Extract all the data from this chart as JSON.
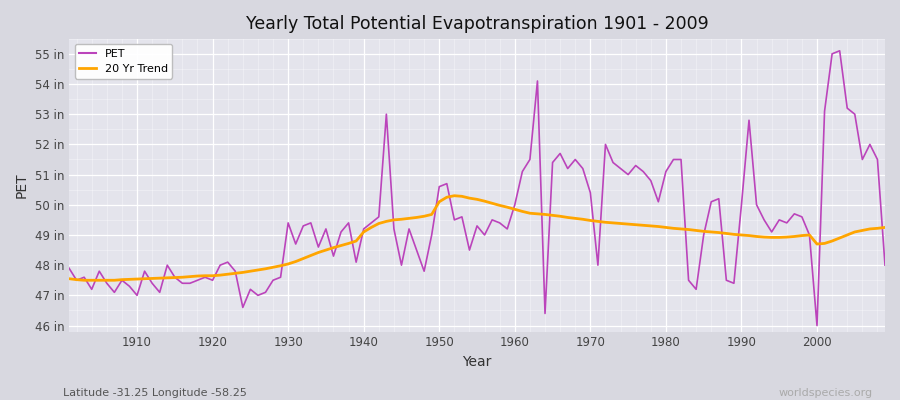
{
  "title": "Yearly Total Potential Evapotranspiration 1901 - 2009",
  "xlabel": "Year",
  "ylabel": "PET",
  "subtitle": "Latitude -31.25 Longitude -58.25",
  "watermark": "worldspecies.org",
  "pet_color": "#BB44BB",
  "trend_color": "#FFA500",
  "fig_bg": "#D8D8E0",
  "plot_bg": "#E4E4EC",
  "ylim_low": 45.8,
  "ylim_high": 55.5,
  "xlim_low": 1901,
  "xlim_high": 2009,
  "yticks": [
    46,
    47,
    48,
    49,
    50,
    51,
    52,
    53,
    54,
    55
  ],
  "ytick_labels": [
    "46 in",
    "47 in",
    "48 in",
    "49 in",
    "50 in",
    "51 in",
    "52 in",
    "53 in",
    "54 in",
    "55 in"
  ],
  "xticks": [
    1910,
    1920,
    1930,
    1940,
    1950,
    1960,
    1970,
    1980,
    1990,
    2000
  ],
  "years": [
    1901,
    1902,
    1903,
    1904,
    1905,
    1906,
    1907,
    1908,
    1909,
    1910,
    1911,
    1912,
    1913,
    1914,
    1915,
    1916,
    1917,
    1918,
    1919,
    1920,
    1921,
    1922,
    1923,
    1924,
    1925,
    1926,
    1927,
    1928,
    1929,
    1930,
    1931,
    1932,
    1933,
    1934,
    1935,
    1936,
    1937,
    1938,
    1939,
    1940,
    1941,
    1942,
    1943,
    1944,
    1945,
    1946,
    1947,
    1948,
    1949,
    1950,
    1951,
    1952,
    1953,
    1954,
    1955,
    1956,
    1957,
    1958,
    1959,
    1960,
    1961,
    1962,
    1963,
    1964,
    1965,
    1966,
    1967,
    1968,
    1969,
    1970,
    1971,
    1972,
    1973,
    1974,
    1975,
    1976,
    1977,
    1978,
    1979,
    1980,
    1981,
    1982,
    1983,
    1984,
    1985,
    1986,
    1987,
    1988,
    1989,
    1990,
    1991,
    1992,
    1993,
    1994,
    1995,
    1996,
    1997,
    1998,
    1999,
    2000,
    2001,
    2002,
    2003,
    2004,
    2005,
    2006,
    2007,
    2008,
    2009
  ],
  "pet_values": [
    47.9,
    47.5,
    47.6,
    47.2,
    47.8,
    47.4,
    47.1,
    47.5,
    47.3,
    47.0,
    47.8,
    47.4,
    47.1,
    48.0,
    47.6,
    47.4,
    47.4,
    47.5,
    47.6,
    47.5,
    48.0,
    48.1,
    47.8,
    46.6,
    47.2,
    47.0,
    47.1,
    47.5,
    47.6,
    49.4,
    48.7,
    49.3,
    49.4,
    48.6,
    49.2,
    48.3,
    49.1,
    49.4,
    48.1,
    49.2,
    49.4,
    49.6,
    53.0,
    49.2,
    48.0,
    49.2,
    48.5,
    47.8,
    49.0,
    50.6,
    50.7,
    49.5,
    49.6,
    48.5,
    49.3,
    49.0,
    49.5,
    49.4,
    49.2,
    50.0,
    51.1,
    51.5,
    54.1,
    46.4,
    51.4,
    51.7,
    51.2,
    51.5,
    51.2,
    50.4,
    48.0,
    52.0,
    51.4,
    51.2,
    51.0,
    51.3,
    51.1,
    50.8,
    50.1,
    51.1,
    51.5,
    51.5,
    47.5,
    47.2,
    49.0,
    50.1,
    50.2,
    47.5,
    47.4,
    50.0,
    52.8,
    50.0,
    49.5,
    49.1,
    49.5,
    49.4,
    49.7,
    49.6,
    49.0,
    46.0,
    53.1,
    55.0,
    55.1,
    53.2,
    53.0,
    51.5,
    52.0,
    51.5,
    48.0
  ],
  "trend_values": [
    47.55,
    47.52,
    47.5,
    47.5,
    47.5,
    47.5,
    47.5,
    47.52,
    47.53,
    47.54,
    47.55,
    47.56,
    47.57,
    47.58,
    47.59,
    47.6,
    47.62,
    47.64,
    47.65,
    47.65,
    47.67,
    47.7,
    47.73,
    47.76,
    47.8,
    47.84,
    47.88,
    47.93,
    47.98,
    48.04,
    48.12,
    48.22,
    48.32,
    48.42,
    48.5,
    48.58,
    48.65,
    48.72,
    48.8,
    49.1,
    49.25,
    49.38,
    49.45,
    49.5,
    49.52,
    49.55,
    49.58,
    49.62,
    49.68,
    50.1,
    50.25,
    50.3,
    50.28,
    50.22,
    50.18,
    50.12,
    50.05,
    49.98,
    49.92,
    49.85,
    49.78,
    49.72,
    49.7,
    49.68,
    49.65,
    49.62,
    49.58,
    49.55,
    49.52,
    49.48,
    49.45,
    49.42,
    49.4,
    49.38,
    49.36,
    49.34,
    49.32,
    49.3,
    49.28,
    49.25,
    49.22,
    49.2,
    49.18,
    49.15,
    49.12,
    49.1,
    49.08,
    49.05,
    49.02,
    49.0,
    48.98,
    48.95,
    48.93,
    48.92,
    48.92,
    48.93,
    48.95,
    48.98,
    49.0,
    48.7,
    48.72,
    48.8,
    48.9,
    49.0,
    49.1,
    49.15,
    49.2,
    49.22,
    49.25
  ]
}
